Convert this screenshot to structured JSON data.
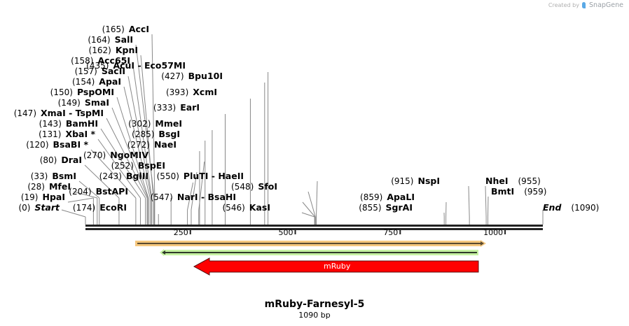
{
  "header": {
    "credit_prefix": "Created by",
    "credit_brand": "SnapGene"
  },
  "map": {
    "title": "mRuby-Farnesyl-5",
    "length_label": "1090 bp",
    "length_bp": 1090,
    "ruler_ticks": [
      {
        "value": 250,
        "label": "250"
      },
      {
        "value": 500,
        "label": "500"
      },
      {
        "value": 750,
        "label": "750"
      },
      {
        "value": 1000,
        "label": "1000"
      }
    ],
    "endpoints": {
      "start": {
        "pos": "(0)",
        "name": "Start"
      },
      "end": {
        "pos": "(1090)",
        "name": "End"
      }
    },
    "sites_left": [
      {
        "pos": "(165)",
        "name": "AccI",
        "bp": 165
      },
      {
        "pos": "(164)",
        "name": "SalI",
        "bp": 164
      },
      {
        "pos": "(162)",
        "name": "KpnI",
        "bp": 162
      },
      {
        "pos": "(158)",
        "name": "Acc65I",
        "bp": 158
      },
      {
        "pos": "(157)",
        "name": "SacII",
        "bp": 157
      },
      {
        "pos": "(154)",
        "name": "ApaI",
        "bp": 154
      },
      {
        "pos": "(150)",
        "name": "PspOMI",
        "bp": 150
      },
      {
        "pos": "(149)",
        "name": "SmaI",
        "bp": 149
      },
      {
        "pos": "(147)",
        "name": "XmaI  - TspMI",
        "bp": 147
      },
      {
        "pos": "(143)",
        "name": "BamHI",
        "bp": 143
      },
      {
        "pos": "(131)",
        "name": "XbaI *",
        "bp": 131
      },
      {
        "pos": "(120)",
        "name": "BsaBI *",
        "bp": 120
      },
      {
        "pos": "(80)",
        "name": "DraI",
        "bp": 80
      },
      {
        "pos": "(33)",
        "name": "BsmI",
        "bp": 33
      },
      {
        "pos": "(28)",
        "name": "MfeI",
        "bp": 28
      },
      {
        "pos": "(19)",
        "name": "HpaI",
        "bp": 19
      }
    ],
    "sites_mid": [
      {
        "pos": "(435)",
        "name": "AcuI  - Eco57MI",
        "bp": 435
      },
      {
        "pos": "(427)",
        "name": "Bpu10I",
        "bp": 427
      },
      {
        "pos": "(393)",
        "name": "XcmI",
        "bp": 393
      },
      {
        "pos": "(333)",
        "name": "EarI",
        "bp": 333
      },
      {
        "pos": "(302)",
        "name": "MmeI",
        "bp": 302
      },
      {
        "pos": "(285)",
        "name": "BsgI",
        "bp": 285
      },
      {
        "pos": "(272)",
        "name": "NaeI",
        "bp": 272
      },
      {
        "pos": "(270)",
        "name": "NgoMIV",
        "bp": 270
      },
      {
        "pos": "(252)",
        "name": "BspEI",
        "bp": 252
      },
      {
        "pos": "(243)",
        "name": "BglII",
        "bp": 243
      },
      {
        "pos": "(204)",
        "name": "BstAPI",
        "bp": 204
      },
      {
        "pos": "(174)",
        "name": "EcoRI",
        "bp": 174
      }
    ],
    "sites_550": [
      {
        "pos": "(550)",
        "name": "PluTI  - HaeII",
        "bp": 550
      },
      {
        "pos": "(548)",
        "name": "SfoI",
        "bp": 548
      },
      {
        "pos": "(547)",
        "name": "NarI  - BsaHI",
        "bp": 547
      },
      {
        "pos": "(546)",
        "name": "KasI",
        "bp": 546
      }
    ],
    "sites_right": [
      {
        "pos": "(915)",
        "name": "NspI",
        "bp": 915
      },
      {
        "pos": "(859)",
        "name": "ApaLI",
        "bp": 859
      },
      {
        "pos": "(855)",
        "name": "SgrAI",
        "bp": 855
      },
      {
        "pos": "(955)",
        "name": "NheI",
        "bp": 955
      },
      {
        "pos": "(959)",
        "name": "BmtI",
        "bp": 959
      }
    ],
    "features": [
      {
        "name": "orange-feature",
        "start": 120,
        "end": 960,
        "direction": "forward",
        "color": "#f5c77e",
        "line": "#5a4a30"
      },
      {
        "name": "green-feature",
        "start": 180,
        "end": 940,
        "direction": "reverse",
        "color": "#c6f2a2",
        "line": "#2f3a2a"
      },
      {
        "name": "mRuby",
        "label": "mRuby",
        "start": 255,
        "end": 940,
        "direction": "reverse",
        "color": "#ff0000"
      }
    ]
  }
}
